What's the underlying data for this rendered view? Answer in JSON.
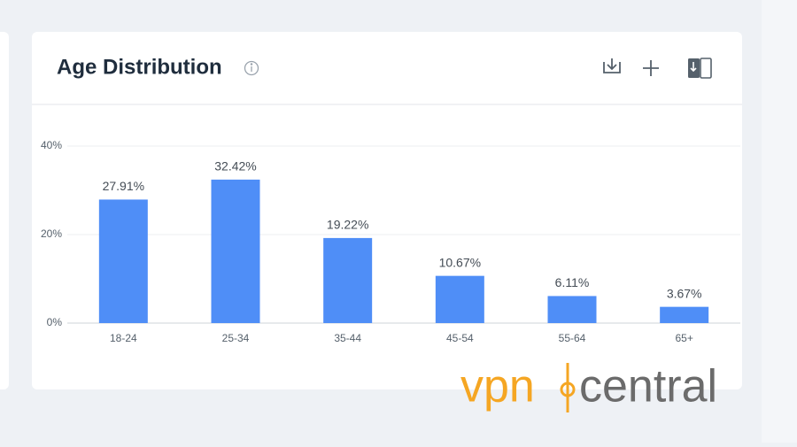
{
  "chart_data": {
    "type": "bar",
    "title": "Age Distribution",
    "categories": [
      "18-24",
      "25-34",
      "35-44",
      "45-54",
      "55-64",
      "65+"
    ],
    "values": [
      27.91,
      32.42,
      19.22,
      10.67,
      6.11,
      3.67
    ],
    "value_labels": [
      "27.91%",
      "32.42%",
      "19.22%",
      "10.67%",
      "6.11%",
      "3.67%"
    ],
    "color": "#4f8ef7",
    "ylim": [
      0,
      40
    ],
    "yticks": [
      {
        "value": 0,
        "label": "0%"
      },
      {
        "value": 20,
        "label": "20%"
      },
      {
        "value": 40,
        "label": "40%"
      }
    ],
    "grid": true
  },
  "watermark": {
    "part1": "vpn",
    "part2": "central"
  }
}
